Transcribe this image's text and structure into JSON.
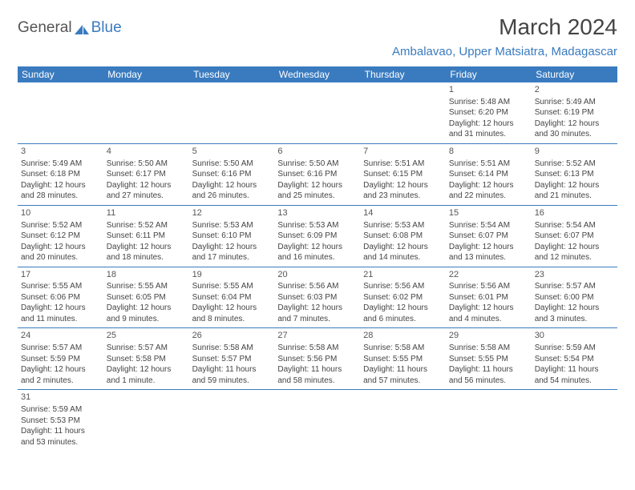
{
  "brand": {
    "part1": "General",
    "part2": "Blue"
  },
  "title": "March 2024",
  "location": "Ambalavao, Upper Matsiatra, Madagascar",
  "colors": {
    "accent": "#3a7bbf",
    "text": "#444444",
    "bg": "#ffffff"
  },
  "weekdays": [
    "Sunday",
    "Monday",
    "Tuesday",
    "Wednesday",
    "Thursday",
    "Friday",
    "Saturday"
  ],
  "weeks": [
    [
      null,
      null,
      null,
      null,
      null,
      {
        "n": "1",
        "sr": "Sunrise: 5:48 AM",
        "ss": "Sunset: 6:20 PM",
        "dl": "Daylight: 12 hours and 31 minutes."
      },
      {
        "n": "2",
        "sr": "Sunrise: 5:49 AM",
        "ss": "Sunset: 6:19 PM",
        "dl": "Daylight: 12 hours and 30 minutes."
      }
    ],
    [
      {
        "n": "3",
        "sr": "Sunrise: 5:49 AM",
        "ss": "Sunset: 6:18 PM",
        "dl": "Daylight: 12 hours and 28 minutes."
      },
      {
        "n": "4",
        "sr": "Sunrise: 5:50 AM",
        "ss": "Sunset: 6:17 PM",
        "dl": "Daylight: 12 hours and 27 minutes."
      },
      {
        "n": "5",
        "sr": "Sunrise: 5:50 AM",
        "ss": "Sunset: 6:16 PM",
        "dl": "Daylight: 12 hours and 26 minutes."
      },
      {
        "n": "6",
        "sr": "Sunrise: 5:50 AM",
        "ss": "Sunset: 6:16 PM",
        "dl": "Daylight: 12 hours and 25 minutes."
      },
      {
        "n": "7",
        "sr": "Sunrise: 5:51 AM",
        "ss": "Sunset: 6:15 PM",
        "dl": "Daylight: 12 hours and 23 minutes."
      },
      {
        "n": "8",
        "sr": "Sunrise: 5:51 AM",
        "ss": "Sunset: 6:14 PM",
        "dl": "Daylight: 12 hours and 22 minutes."
      },
      {
        "n": "9",
        "sr": "Sunrise: 5:52 AM",
        "ss": "Sunset: 6:13 PM",
        "dl": "Daylight: 12 hours and 21 minutes."
      }
    ],
    [
      {
        "n": "10",
        "sr": "Sunrise: 5:52 AM",
        "ss": "Sunset: 6:12 PM",
        "dl": "Daylight: 12 hours and 20 minutes."
      },
      {
        "n": "11",
        "sr": "Sunrise: 5:52 AM",
        "ss": "Sunset: 6:11 PM",
        "dl": "Daylight: 12 hours and 18 minutes."
      },
      {
        "n": "12",
        "sr": "Sunrise: 5:53 AM",
        "ss": "Sunset: 6:10 PM",
        "dl": "Daylight: 12 hours and 17 minutes."
      },
      {
        "n": "13",
        "sr": "Sunrise: 5:53 AM",
        "ss": "Sunset: 6:09 PM",
        "dl": "Daylight: 12 hours and 16 minutes."
      },
      {
        "n": "14",
        "sr": "Sunrise: 5:53 AM",
        "ss": "Sunset: 6:08 PM",
        "dl": "Daylight: 12 hours and 14 minutes."
      },
      {
        "n": "15",
        "sr": "Sunrise: 5:54 AM",
        "ss": "Sunset: 6:07 PM",
        "dl": "Daylight: 12 hours and 13 minutes."
      },
      {
        "n": "16",
        "sr": "Sunrise: 5:54 AM",
        "ss": "Sunset: 6:07 PM",
        "dl": "Daylight: 12 hours and 12 minutes."
      }
    ],
    [
      {
        "n": "17",
        "sr": "Sunrise: 5:55 AM",
        "ss": "Sunset: 6:06 PM",
        "dl": "Daylight: 12 hours and 11 minutes."
      },
      {
        "n": "18",
        "sr": "Sunrise: 5:55 AM",
        "ss": "Sunset: 6:05 PM",
        "dl": "Daylight: 12 hours and 9 minutes."
      },
      {
        "n": "19",
        "sr": "Sunrise: 5:55 AM",
        "ss": "Sunset: 6:04 PM",
        "dl": "Daylight: 12 hours and 8 minutes."
      },
      {
        "n": "20",
        "sr": "Sunrise: 5:56 AM",
        "ss": "Sunset: 6:03 PM",
        "dl": "Daylight: 12 hours and 7 minutes."
      },
      {
        "n": "21",
        "sr": "Sunrise: 5:56 AM",
        "ss": "Sunset: 6:02 PM",
        "dl": "Daylight: 12 hours and 6 minutes."
      },
      {
        "n": "22",
        "sr": "Sunrise: 5:56 AM",
        "ss": "Sunset: 6:01 PM",
        "dl": "Daylight: 12 hours and 4 minutes."
      },
      {
        "n": "23",
        "sr": "Sunrise: 5:57 AM",
        "ss": "Sunset: 6:00 PM",
        "dl": "Daylight: 12 hours and 3 minutes."
      }
    ],
    [
      {
        "n": "24",
        "sr": "Sunrise: 5:57 AM",
        "ss": "Sunset: 5:59 PM",
        "dl": "Daylight: 12 hours and 2 minutes."
      },
      {
        "n": "25",
        "sr": "Sunrise: 5:57 AM",
        "ss": "Sunset: 5:58 PM",
        "dl": "Daylight: 12 hours and 1 minute."
      },
      {
        "n": "26",
        "sr": "Sunrise: 5:58 AM",
        "ss": "Sunset: 5:57 PM",
        "dl": "Daylight: 11 hours and 59 minutes."
      },
      {
        "n": "27",
        "sr": "Sunrise: 5:58 AM",
        "ss": "Sunset: 5:56 PM",
        "dl": "Daylight: 11 hours and 58 minutes."
      },
      {
        "n": "28",
        "sr": "Sunrise: 5:58 AM",
        "ss": "Sunset: 5:55 PM",
        "dl": "Daylight: 11 hours and 57 minutes."
      },
      {
        "n": "29",
        "sr": "Sunrise: 5:58 AM",
        "ss": "Sunset: 5:55 PM",
        "dl": "Daylight: 11 hours and 56 minutes."
      },
      {
        "n": "30",
        "sr": "Sunrise: 5:59 AM",
        "ss": "Sunset: 5:54 PM",
        "dl": "Daylight: 11 hours and 54 minutes."
      }
    ],
    [
      {
        "n": "31",
        "sr": "Sunrise: 5:59 AM",
        "ss": "Sunset: 5:53 PM",
        "dl": "Daylight: 11 hours and 53 minutes."
      },
      null,
      null,
      null,
      null,
      null,
      null
    ]
  ]
}
